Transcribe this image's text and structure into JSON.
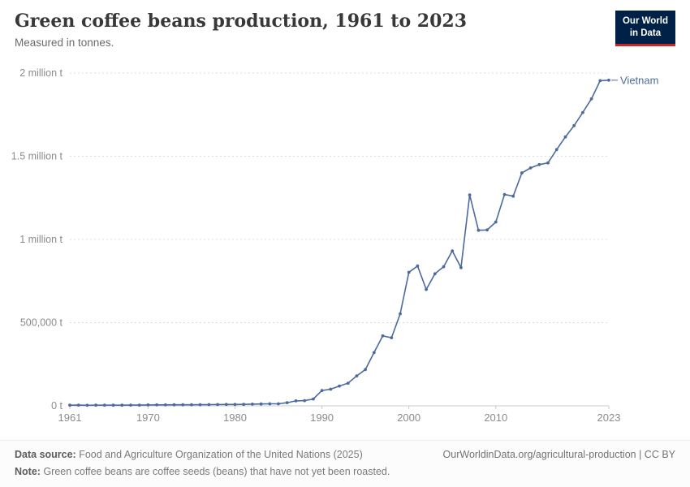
{
  "header": {
    "title": "Green coffee beans production, 1961 to 2023",
    "subtitle": "Measured in tonnes."
  },
  "logo": {
    "line1": "Our World",
    "line2": "in Data",
    "bg_color": "#002147",
    "accent_color": "#c72525"
  },
  "chart_data": {
    "type": "line",
    "title": "Green coffee beans production, 1961 to 2023",
    "subtitle": "Measured in tonnes.",
    "xlabel": "",
    "ylabel": "tonnes",
    "xlim": [
      1961,
      2023
    ],
    "ylim": [
      0,
      2000000
    ],
    "grid": "dashed-horizontal",
    "legend_position": "end-of-line-label",
    "color": "#4c6a9c",
    "x": [
      1961,
      1962,
      1963,
      1964,
      1965,
      1966,
      1967,
      1968,
      1969,
      1970,
      1971,
      1972,
      1973,
      1974,
      1975,
      1976,
      1977,
      1978,
      1979,
      1980,
      1981,
      1982,
      1983,
      1984,
      1985,
      1986,
      1987,
      1988,
      1989,
      1990,
      1991,
      1992,
      1993,
      1994,
      1995,
      1996,
      1997,
      1998,
      1999,
      2000,
      2001,
      2002,
      2003,
      2004,
      2005,
      2006,
      2007,
      2008,
      2009,
      2010,
      2011,
      2012,
      2013,
      2014,
      2015,
      2016,
      2017,
      2018,
      2019,
      2020,
      2021,
      2022,
      2023
    ],
    "series": [
      {
        "name": "Vietnam",
        "values": [
          4000,
          4200,
          3500,
          3700,
          4000,
          4100,
          4000,
          4300,
          4600,
          5500,
          5700,
          6000,
          6100,
          6300,
          6100,
          7000,
          7400,
          8000,
          8200,
          8400,
          9000,
          10000,
          11000,
          12000,
          12300,
          18800,
          30000,
          31000,
          40800,
          92000,
          100000,
          119200,
          136100,
          180000,
          218100,
          320100,
          420500,
          409300,
          553200,
          802500,
          840600,
          699500,
          793700,
          836000,
          931200,
          830800,
          1268000,
          1055000,
          1057000,
          1105000,
          1270000,
          1260000,
          1400000,
          1430000,
          1450000,
          1460000,
          1540000,
          1616000,
          1684000,
          1763000,
          1845000,
          1954000,
          1957000
        ]
      }
    ],
    "yticks": [
      {
        "value": 0,
        "label": "0 t"
      },
      {
        "value": 500000,
        "label": "500,000 t"
      },
      {
        "value": 1000000,
        "label": "1 million t"
      },
      {
        "value": 1500000,
        "label": "1.5 million t"
      },
      {
        "value": 2000000,
        "label": "2 million t"
      }
    ],
    "xticks": [
      1961,
      1970,
      1980,
      1990,
      2000,
      2010,
      2023
    ]
  },
  "footer": {
    "source_label": "Data source:",
    "source_text": "Food and Agriculture Organization of the United Nations (2025)",
    "link": "OurWorldinData.org/agricultural-production | CC BY",
    "note_label": "Note:",
    "note_text": "Green coffee beans are coffee seeds (beans) that have not yet been roasted."
  }
}
